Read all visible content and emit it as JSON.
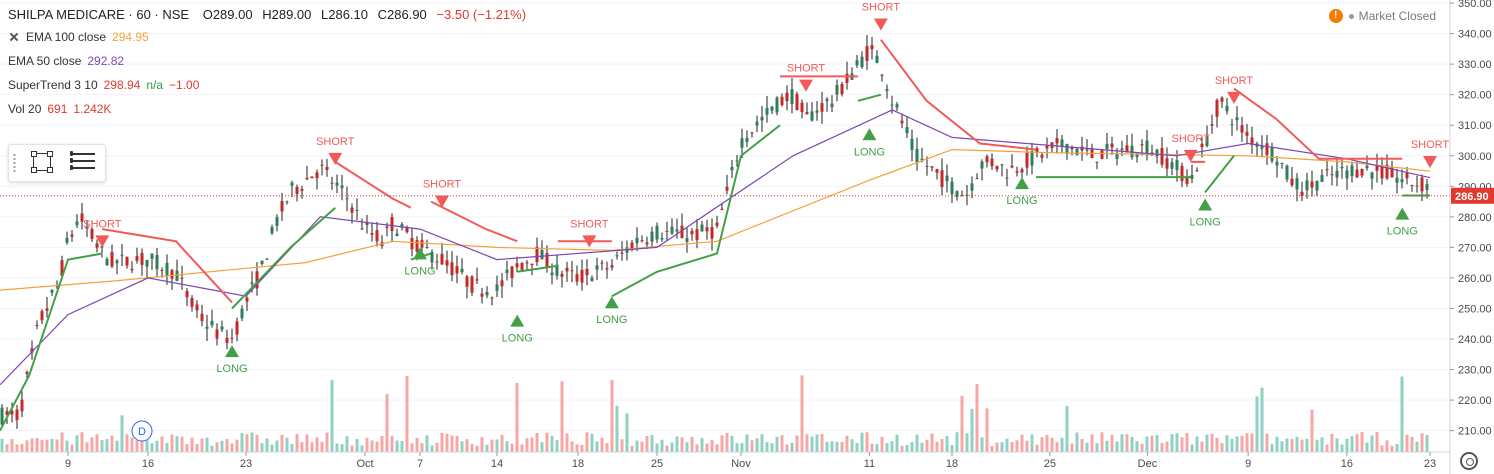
{
  "header": {
    "symbol": "SHILPA MEDICARE · 60 · NSE",
    "open": "O289.00",
    "high": "H289.00",
    "low": "L286.10",
    "close": "C286.90",
    "change": "−3.50 (−1.21%)"
  },
  "indicators": [
    {
      "name": "EMA 100 close",
      "value": "294.95",
      "extra": "",
      "extra2": "",
      "color": "#f2a23a"
    },
    {
      "name": "EMA 50 close",
      "value": "292.82",
      "extra": "",
      "extra2": "",
      "color": "#7b47b3"
    },
    {
      "name": "SuperTrend 3 10",
      "value": "298.94",
      "extra": "n/a",
      "extra2": "−1.00",
      "color": "#e0392f"
    },
    {
      "name": "Vol 20",
      "value": "691",
      "extra": "1.242K",
      "extra2": "",
      "color": "#e0392f"
    }
  ],
  "market_status": "Market Closed",
  "dividend_marker": "D",
  "colors": {
    "up": "#26a69a",
    "down": "#ef5350",
    "buy": "#43a047",
    "sell": "#f25a5a",
    "ema100": "#f2a23a",
    "ema50": "#7b47b3",
    "last": "#e0392f"
  },
  "icons": {
    "toolbar": [
      "drag-handle-icon",
      "rectangle-tool-icon",
      "settings-lines-icon"
    ],
    "status": "warning-icon",
    "settings": "gear-icon"
  },
  "chart_data": {
    "type": "candlestick",
    "title": "SHILPA MEDICARE · 60 · NSE",
    "x_ticks": [
      "9",
      "16",
      "23",
      "Oct",
      "7",
      "14",
      "18",
      "25",
      "Nov",
      "11",
      "18",
      "25",
      "Dec",
      "9",
      "16",
      "23"
    ],
    "y_ticks": [
      210,
      220,
      230,
      240,
      250,
      260,
      270,
      280,
      290,
      300,
      310,
      320,
      330,
      340,
      350
    ],
    "ylim": [
      203,
      351
    ],
    "last_price": "286.90",
    "close_path": [
      {
        "x": "Sep 4",
        "y": 215
      },
      {
        "x": "Sep 5",
        "y": 230
      },
      {
        "x": "Sep 6",
        "y": 245
      },
      {
        "x": "Sep 8",
        "y": 258
      },
      {
        "x": "Sep 9",
        "y": 272
      },
      {
        "x": "Sep 10",
        "y": 280
      },
      {
        "x": "Sep 11",
        "y": 274
      },
      {
        "x": "Sep 12",
        "y": 268
      },
      {
        "x": "Sep 13",
        "y": 265
      },
      {
        "x": "Sep 16",
        "y": 266
      },
      {
        "x": "Sep 17",
        "y": 264
      },
      {
        "x": "Sep 18",
        "y": 262
      },
      {
        "x": "Sep 19",
        "y": 252
      },
      {
        "x": "Sep 20",
        "y": 246
      },
      {
        "x": "Sep 21",
        "y": 242
      },
      {
        "x": "Sep 22",
        "y": 240
      },
      {
        "x": "Sep 23",
        "y": 252
      },
      {
        "x": "Sep 24",
        "y": 262
      },
      {
        "x": "Sep 25",
        "y": 278
      },
      {
        "x": "Sep 26",
        "y": 288
      },
      {
        "x": "Sep 27",
        "y": 292
      },
      {
        "x": "Sep 28",
        "y": 296
      },
      {
        "x": "Sep 30",
        "y": 285
      },
      {
        "x": "Oct 1",
        "y": 276
      },
      {
        "x": "Oct 3",
        "y": 272
      },
      {
        "x": "Oct 4",
        "y": 278
      },
      {
        "x": "Oct 7",
        "y": 270
      },
      {
        "x": "Oct 9",
        "y": 266
      },
      {
        "x": "Oct 11",
        "y": 260
      },
      {
        "x": "Oct 12",
        "y": 257
      },
      {
        "x": "Oct 14",
        "y": 256
      },
      {
        "x": "Oct 15",
        "y": 264
      },
      {
        "x": "Oct 16",
        "y": 268
      },
      {
        "x": "Oct 17",
        "y": 262
      },
      {
        "x": "Oct 18",
        "y": 260
      },
      {
        "x": "Oct 21",
        "y": 264
      },
      {
        "x": "Oct 22",
        "y": 268
      },
      {
        "x": "Oct 23",
        "y": 272
      },
      {
        "x": "Oct 25",
        "y": 275
      },
      {
        "x": "Oct 28",
        "y": 274
      },
      {
        "x": "Oct 30",
        "y": 276
      },
      {
        "x": "Oct 31",
        "y": 290
      },
      {
        "x": "Nov 1",
        "y": 305
      },
      {
        "x": "Nov 4",
        "y": 318
      },
      {
        "x": "Nov 5",
        "y": 320
      },
      {
        "x": "Nov 6",
        "y": 312
      },
      {
        "x": "Nov 7",
        "y": 316
      },
      {
        "x": "Nov 8",
        "y": 318
      },
      {
        "x": "Nov 11",
        "y": 335
      },
      {
        "x": "Nov 12",
        "y": 330
      },
      {
        "x": "Nov 13",
        "y": 318
      },
      {
        "x": "Nov 14",
        "y": 310
      },
      {
        "x": "Nov 15",
        "y": 300
      },
      {
        "x": "Nov 18",
        "y": 290
      },
      {
        "x": "Nov 19",
        "y": 287
      },
      {
        "x": "Nov 20",
        "y": 297
      },
      {
        "x": "Nov 21",
        "y": 298
      },
      {
        "x": "Nov 22",
        "y": 295
      },
      {
        "x": "Nov 25",
        "y": 302
      },
      {
        "x": "Nov 26",
        "y": 304
      },
      {
        "x": "Nov 27",
        "y": 302
      },
      {
        "x": "Nov 28",
        "y": 300
      },
      {
        "x": "Nov 29",
        "y": 301
      },
      {
        "x": "Dec 2",
        "y": 303
      },
      {
        "x": "Dec 3",
        "y": 300
      },
      {
        "x": "Dec 4",
        "y": 296
      },
      {
        "x": "Dec 5",
        "y": 292
      },
      {
        "x": "Dec 6",
        "y": 304
      },
      {
        "x": "Dec 7",
        "y": 318
      },
      {
        "x": "Dec 9",
        "y": 306
      },
      {
        "x": "Dec 10",
        "y": 304
      },
      {
        "x": "Dec 11",
        "y": 300
      },
      {
        "x": "Dec 12",
        "y": 292
      },
      {
        "x": "Dec 13",
        "y": 289
      },
      {
        "x": "Dec 14",
        "y": 292
      },
      {
        "x": "Dec 16",
        "y": 295
      },
      {
        "x": "Dec 17",
        "y": 296
      },
      {
        "x": "Dec 18",
        "y": 295
      },
      {
        "x": "Dec 19",
        "y": 294
      },
      {
        "x": "Dec 20",
        "y": 292
      },
      {
        "x": "Dec 21",
        "y": 291
      },
      {
        "x": "Dec 22",
        "y": 290
      },
      {
        "x": "Dec 23",
        "y": 287
      }
    ],
    "series": [
      {
        "name": "EMA 100 close",
        "color": "#f2a23a",
        "points": [
          {
            "x": "Sep 2",
            "y": 256
          },
          {
            "x": "Sep 13",
            "y": 259
          },
          {
            "x": "Sep 27",
            "y": 265
          },
          {
            "x": "Oct 4",
            "y": 272
          },
          {
            "x": "Oct 14",
            "y": 270
          },
          {
            "x": "Oct 21",
            "y": 269
          },
          {
            "x": "Oct 30",
            "y": 272
          },
          {
            "x": "Nov 11",
            "y": 292
          },
          {
            "x": "Nov 18",
            "y": 302
          },
          {
            "x": "Nov 25",
            "y": 301
          },
          {
            "x": "Dec 9",
            "y": 300
          },
          {
            "x": "Dec 16",
            "y": 298
          },
          {
            "x": "Dec 23",
            "y": 294.95
          }
        ]
      },
      {
        "name": "EMA 50 close",
        "color": "#7b47b3",
        "points": [
          {
            "x": "Sep 2",
            "y": 225
          },
          {
            "x": "Sep 9",
            "y": 248
          },
          {
            "x": "Sep 16",
            "y": 260
          },
          {
            "x": "Sep 23",
            "y": 254
          },
          {
            "x": "Sep 28",
            "y": 280
          },
          {
            "x": "Oct 7",
            "y": 276
          },
          {
            "x": "Oct 14",
            "y": 266
          },
          {
            "x": "Oct 25",
            "y": 270
          },
          {
            "x": "Nov 5",
            "y": 300
          },
          {
            "x": "Nov 13",
            "y": 315
          },
          {
            "x": "Nov 18",
            "y": 306
          },
          {
            "x": "Dec 4",
            "y": 300
          },
          {
            "x": "Dec 9",
            "y": 304
          },
          {
            "x": "Dec 16",
            "y": 299
          },
          {
            "x": "Dec 23",
            "y": 292.82
          }
        ]
      }
    ],
    "supertrend": {
      "name": "SuperTrend 3 10",
      "last_value": "298.94",
      "segments": [
        {
          "trend": "up",
          "points": [
            {
              "x": "Sep 2",
              "y": 210
            },
            {
              "x": "Sep 5",
              "y": 228
            },
            {
              "x": "Sep 9",
              "y": 266
            },
            {
              "x": "Sep 12",
              "y": 268
            }
          ]
        },
        {
          "trend": "down",
          "points": [
            {
              "x": "Sep 12",
              "y": 276
            },
            {
              "x": "Sep 18",
              "y": 272
            },
            {
              "x": "Sep 22",
              "y": 252
            }
          ]
        },
        {
          "trend": "up",
          "points": [
            {
              "x": "Sep 22",
              "y": 250
            },
            {
              "x": "Sep 26",
              "y": 270
            },
            {
              "x": "Sep 29",
              "y": 283
            }
          ]
        },
        {
          "trend": "down",
          "points": [
            {
              "x": "Sep 29",
              "y": 298
            },
            {
              "x": "Oct 4",
              "y": 286
            },
            {
              "x": "Oct 6",
              "y": 283
            }
          ]
        },
        {
          "trend": "up",
          "points": [
            {
              "x": "Oct 6",
              "y": 266
            },
            {
              "x": "Oct 8",
              "y": 268
            }
          ]
        },
        {
          "trend": "down",
          "points": [
            {
              "x": "Oct 8",
              "y": 285
            },
            {
              "x": "Oct 13",
              "y": 276
            },
            {
              "x": "Oct 15",
              "y": 272
            }
          ]
        },
        {
          "trend": "up",
          "points": [
            {
              "x": "Oct 15",
              "y": 262
            },
            {
              "x": "Oct 17",
              "y": 264
            }
          ]
        },
        {
          "trend": "down",
          "points": [
            {
              "x": "Oct 17",
              "y": 272
            },
            {
              "x": "Oct 21",
              "y": 272
            }
          ]
        },
        {
          "trend": "up",
          "points": [
            {
              "x": "Oct 21",
              "y": 254
            },
            {
              "x": "Oct 25",
              "y": 262
            },
            {
              "x": "Oct 30",
              "y": 268
            },
            {
              "x": "Nov 1",
              "y": 300
            },
            {
              "x": "Nov 4",
              "y": 310
            }
          ]
        },
        {
          "trend": "down",
          "points": [
            {
              "x": "Nov 4",
              "y": 326
            },
            {
              "x": "Nov 10",
              "y": 326
            }
          ]
        },
        {
          "trend": "up",
          "points": [
            {
              "x": "Nov 10",
              "y": 318
            },
            {
              "x": "Nov 12",
              "y": 320
            }
          ]
        },
        {
          "trend": "down",
          "points": [
            {
              "x": "Nov 12",
              "y": 338
            },
            {
              "x": "Nov 16",
              "y": 318
            },
            {
              "x": "Nov 20",
              "y": 304
            },
            {
              "x": "Nov 24",
              "y": 302
            }
          ]
        },
        {
          "trend": "up",
          "points": [
            {
              "x": "Nov 24",
              "y": 293
            },
            {
              "x": "Dec 5",
              "y": 293
            }
          ]
        },
        {
          "trend": "down",
          "points": [
            {
              "x": "Dec 5",
              "y": 298
            },
            {
              "x": "Dec 6",
              "y": 298
            }
          ]
        },
        {
          "trend": "up",
          "points": [
            {
              "x": "Dec 6",
              "y": 288
            },
            {
              "x": "Dec 8",
              "y": 300
            }
          ]
        },
        {
          "trend": "down",
          "points": [
            {
              "x": "Dec 8",
              "y": 322
            },
            {
              "x": "Dec 11",
              "y": 312
            },
            {
              "x": "Dec 14",
              "y": 299
            },
            {
              "x": "Dec 20",
              "y": 299
            }
          ]
        },
        {
          "trend": "up",
          "points": [
            {
              "x": "Dec 20",
              "y": 287
            },
            {
              "x": "Dec 22",
              "y": 287
            }
          ]
        },
        {
          "trend": "down",
          "points": [
            {
              "x": "Dec 22",
              "y": 298.94
            },
            {
              "x": "Dec 23",
              "y": 298.94
            }
          ]
        }
      ]
    },
    "signals": [
      {
        "type": "SHORT",
        "x": "Sep 12",
        "price": 270
      },
      {
        "type": "SHORT",
        "x": "Sep 29",
        "price": 297
      },
      {
        "type": "SHORT",
        "x": "Oct 9",
        "price": 283
      },
      {
        "type": "SHORT",
        "x": "Oct 19",
        "price": 270
      },
      {
        "type": "SHORT",
        "x": "Nov 6",
        "price": 321
      },
      {
        "type": "SHORT",
        "x": "Nov 12",
        "price": 341
      },
      {
        "type": "SHORT",
        "x": "Dec 5",
        "price": 298
      },
      {
        "type": "SHORT",
        "x": "Dec 8",
        "price": 317
      },
      {
        "type": "SHORT",
        "x": "Dec 23",
        "price": 296
      },
      {
        "type": "LONG",
        "x": "Sep 22",
        "price": 238
      },
      {
        "type": "LONG",
        "x": "Oct 7",
        "price": 270
      },
      {
        "type": "LONG",
        "x": "Oct 15",
        "price": 248
      },
      {
        "type": "LONG",
        "x": "Oct 21",
        "price": 254
      },
      {
        "type": "LONG",
        "x": "Nov 11",
        "price": 309
      },
      {
        "type": "LONG",
        "x": "Nov 23",
        "price": 293
      },
      {
        "type": "LONG",
        "x": "Dec 6",
        "price": 286
      },
      {
        "type": "LONG",
        "x": "Dec 20",
        "price": 283
      }
    ],
    "volume": {
      "name": "Vol 20",
      "last": "691",
      "average": "1.242K"
    }
  }
}
